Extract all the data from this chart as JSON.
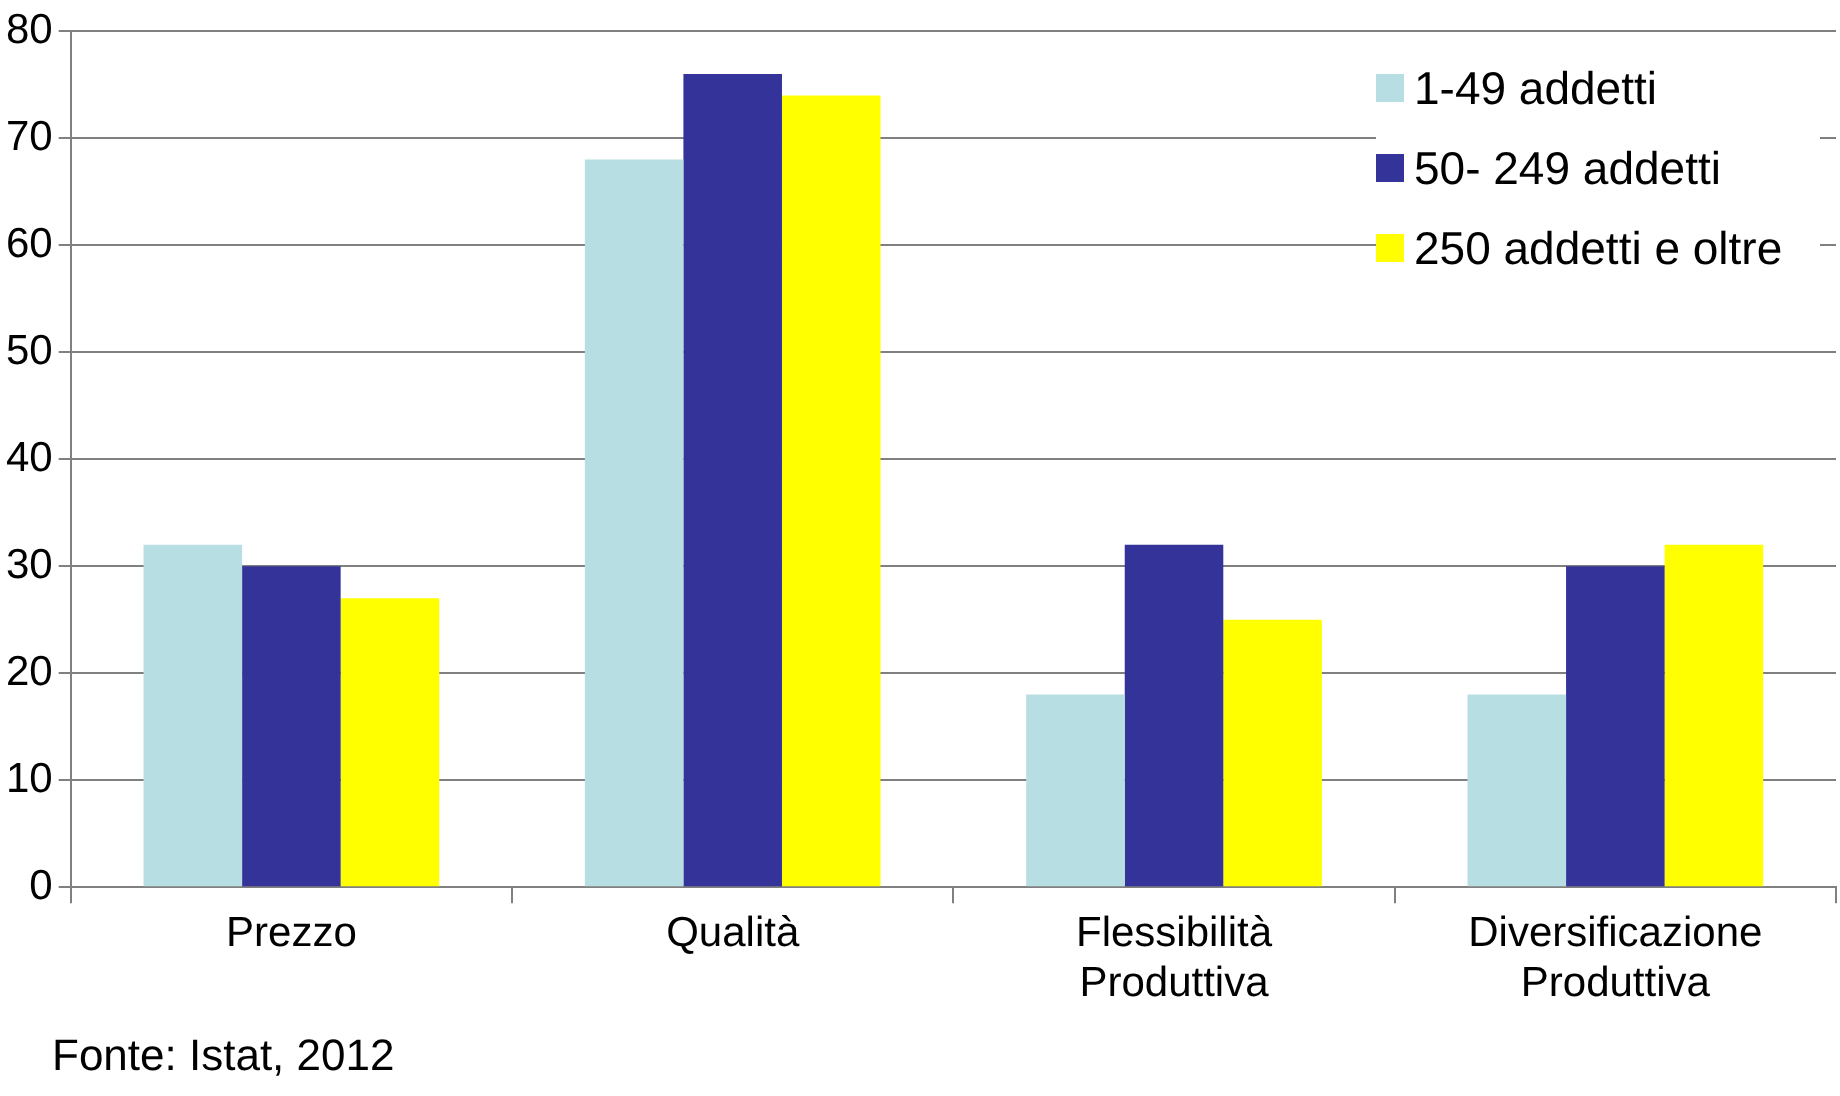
{
  "chart_data": {
    "type": "bar",
    "categories": [
      "Prezzo",
      "Qualità",
      "Flessibilità Produttiva",
      "Diversificazione Produttiva"
    ],
    "series": [
      {
        "name": "1-49 addetti",
        "color": "#b7dee2",
        "values": [
          32,
          68,
          18,
          18
        ]
      },
      {
        "name": "50- 249 addetti",
        "color": "#333399",
        "values": [
          30,
          76,
          32,
          30
        ]
      },
      {
        "name": "250 addetti e oltre",
        "color": "#ffff00",
        "values": [
          27,
          74,
          25,
          32
        ]
      }
    ],
    "ylim": [
      0,
      80
    ],
    "yticks": [
      0,
      10,
      20,
      30,
      40,
      50,
      60,
      70,
      80
    ],
    "grid": "y",
    "legend": "top right",
    "annotations": [
      "Fonte: Istat, 2012"
    ]
  }
}
